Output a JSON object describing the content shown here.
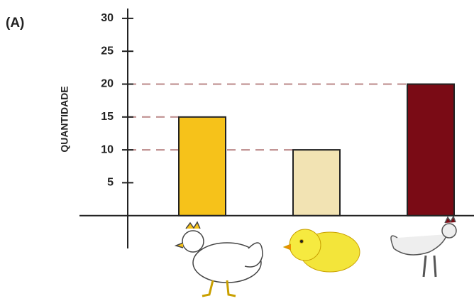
{
  "chart_data": {
    "type": "bar",
    "title": "(A)",
    "y_label": "QUANTIDADE",
    "categories": [
      null,
      null,
      null
    ],
    "values": [
      15,
      10,
      20
    ],
    "colors": [
      "#f6c21a",
      "#f2e3b3",
      "#7a0b15"
    ],
    "ylim": [
      -5,
      31.5
    ],
    "yticks": [
      5,
      10,
      15,
      20,
      25,
      30
    ],
    "reference_lines": true
  }
}
